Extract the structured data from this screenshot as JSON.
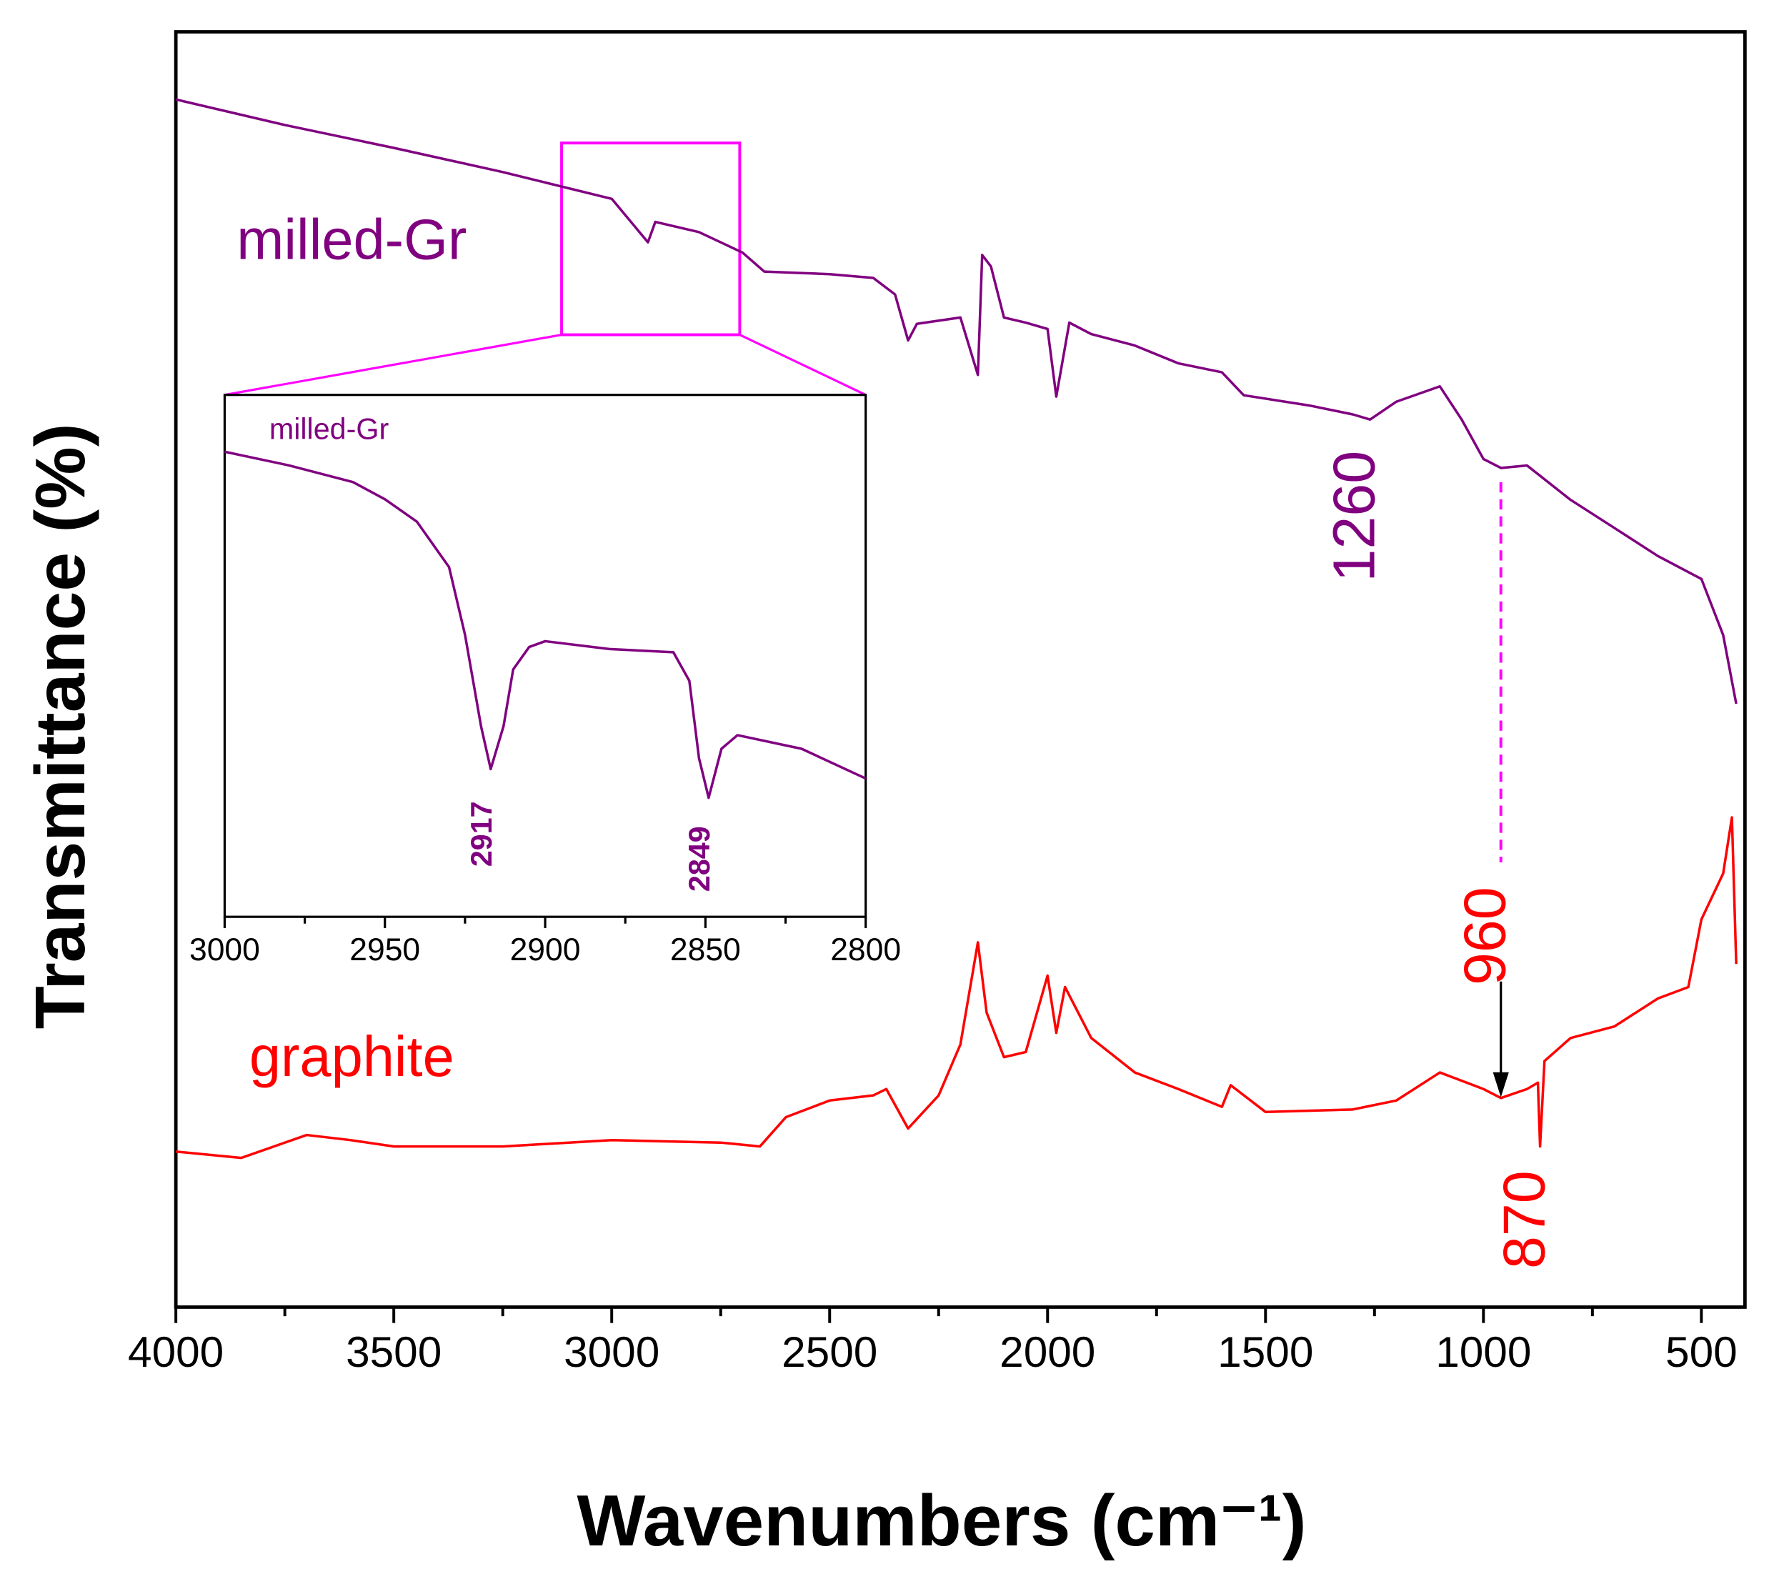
{
  "chart_data": [
    {
      "type": "line",
      "xlabel": "Wavenumbers (cm⁻¹)",
      "ylabel": "Transmittance (%)",
      "xlim": [
        4000,
        400
      ],
      "ylim": [
        0,
        100
      ],
      "xticks": [
        4000,
        3500,
        3000,
        2500,
        2000,
        1500,
        1000,
        500
      ],
      "xminorticks": [
        3750,
        3250,
        2750,
        2250,
        1750,
        1250,
        750
      ],
      "series": [
        {
          "name": "milled-Gr",
          "color": "#800080",
          "x": [
            4000,
            3750,
            3500,
            3250,
            3000,
            2917,
            2900,
            2800,
            2700,
            2650,
            2500,
            2400,
            2350,
            2320,
            2300,
            2200,
            2160,
            2150,
            2130,
            2100,
            2050,
            2000,
            1980,
            1950,
            1900,
            1800,
            1700,
            1600,
            1550,
            1400,
            1300,
            1260,
            1200,
            1100,
            1050,
            1000,
            960,
            900,
            800,
            700,
            600,
            500,
            450,
            420
          ],
          "values": [
            94.7,
            92.7,
            90.9,
            89,
            86.9,
            83.5,
            85.1,
            84.3,
            82.7,
            81.2,
            81,
            80.7,
            79.4,
            75.8,
            77.1,
            77.6,
            73.1,
            82.5,
            81.6,
            77.6,
            77.2,
            76.7,
            71.4,
            77.2,
            76.3,
            75.4,
            74,
            73.3,
            71.5,
            70.7,
            70,
            69.6,
            71,
            72.2,
            69.6,
            66.5,
            65.8,
            66,
            63.3,
            61.1,
            58.9,
            57.1,
            52.7,
            47.3
          ]
        },
        {
          "name": "graphite",
          "color": "#ff0000",
          "x": [
            4000,
            3850,
            3700,
            3600,
            3500,
            3250,
            3000,
            2750,
            2660,
            2600,
            2500,
            2400,
            2370,
            2320,
            2250,
            2200,
            2160,
            2140,
            2100,
            2050,
            2000,
            1980,
            1960,
            1900,
            1800,
            1700,
            1600,
            1580,
            1500,
            1300,
            1200,
            1100,
            1000,
            960,
            900,
            875,
            870,
            860,
            800,
            700,
            600,
            530,
            500,
            450,
            430,
            420
          ],
          "values": [
            12.2,
            11.7,
            13.5,
            13.1,
            12.6,
            12.6,
            13.1,
            12.9,
            12.6,
            14.9,
            16.2,
            16.6,
            17.1,
            14,
            16.6,
            20.6,
            28.6,
            23.1,
            19.6,
            20,
            26,
            21.5,
            25.1,
            21.1,
            18.4,
            17.1,
            15.7,
            17.4,
            15.3,
            15.5,
            16.2,
            18.4,
            17.1,
            16.4,
            17.1,
            17.6,
            12.6,
            19.3,
            21.1,
            22,
            24.2,
            25.1,
            30.4,
            34,
            38.4,
            26.9
          ]
        }
      ],
      "annotations": [
        {
          "x": 1260,
          "color": "#800080"
        },
        {
          "x": 960,
          "color": "#ff0000"
        },
        {
          "x": 870,
          "color": "#ff0000"
        }
      ]
    },
    {
      "type": "line",
      "xlim": [
        3000,
        2800
      ],
      "ylim": [
        0,
        100
      ],
      "xticks": [
        3000,
        2950,
        2900,
        2850,
        2800
      ],
      "xminorticks": [
        2975,
        2925,
        2875,
        2825
      ],
      "series": [
        {
          "name": "milled-Gr",
          "color": "#800080",
          "x": [
            3000,
            2980,
            2960,
            2950,
            2940,
            2930,
            2925,
            2920,
            2917,
            2913,
            2910,
            2905,
            2900,
            2880,
            2860,
            2855,
            2852,
            2849,
            2845,
            2840,
            2820,
            2800
          ],
          "values": [
            89.1,
            86.5,
            83.3,
            80,
            75.7,
            67,
            54,
            36.5,
            28.3,
            36.5,
            47.4,
            51.7,
            52.8,
            51.3,
            50.7,
            45.2,
            30.4,
            22.8,
            32.2,
            34.8,
            32.2,
            26.5
          ]
        }
      ],
      "annotations": [
        {
          "x": 2917,
          "color": "#800080"
        },
        {
          "x": 2849,
          "color": "#800080"
        }
      ]
    }
  ]
}
